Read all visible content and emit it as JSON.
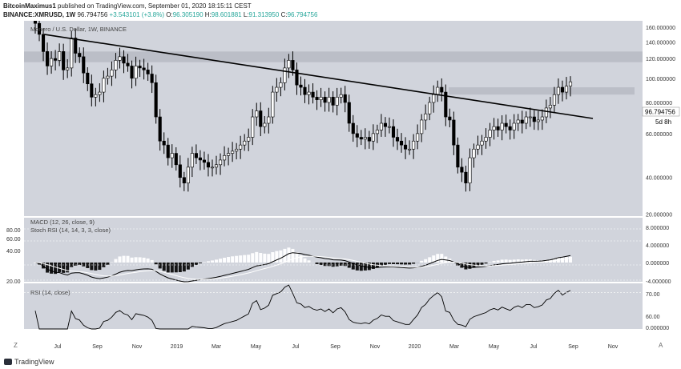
{
  "header": {
    "author": "BitcoinMaximus1",
    "published": "published on TradingView.com, September 01, 2020 18:15:11 CEST",
    "symbol": "BINANCE:XMRUSD, 1W",
    "price": "96.794756",
    "change": "+3.543101 (+3.8%)",
    "o_label": "O:",
    "o": "96.305190",
    "h_label": "H:",
    "h": "98.601881",
    "l_label": "L:",
    "l": "91.313950",
    "c_label": "C:",
    "c": "96.794756"
  },
  "pane_titles": {
    "main": "Monero / U.S. Dollar, 1W, BINANCE",
    "macd": "MACD (12, 26, close, 9)",
    "stoch": "Stoch RSI (14, 14, 3, 3, close)",
    "rsi": "RSI (14, close)"
  },
  "price_label": "96.794756",
  "countdown_label": "5d 8h",
  "footer": {
    "brand": "TradingView"
  },
  "icons": {
    "logo": "tradingview-logo-icon",
    "zoom_left": "Z",
    "zoom_right": "A"
  },
  "chart_data": {
    "type": "candlestick",
    "x_ticks": [
      "Jul",
      "Sep",
      "Nov",
      "2019",
      "Mar",
      "May",
      "Jul",
      "Sep",
      "Nov",
      "2020",
      "Mar",
      "May",
      "Jul",
      "Sep",
      "Nov"
    ],
    "y_ticks_main": [
      "160.000000",
      "140.000000",
      "120.000000",
      "100.000000",
      "80.000000",
      "60.000000",
      "40.000000",
      "20.000000"
    ],
    "y_ticks_macd": [
      "8.000000",
      "4.000000",
      "0.000000",
      "-4.000000"
    ],
    "y_ticks_stoch": [
      "80.00",
      "60.00",
      "40.00",
      "20.00"
    ],
    "y_ticks_rsi": [
      "70.00",
      "60.00",
      "0.000000"
    ],
    "ylim": [
      20,
      170
    ],
    "log_scale": true,
    "colors": {
      "bg": "#d1d4dc",
      "up": "#ffffff",
      "down": "#000000",
      "trend": "#000000",
      "zone": "#b7bac3"
    },
    "weekly_close": [
      166,
      150,
      128,
      112,
      120,
      118,
      128,
      108,
      110,
      145,
      126,
      122,
      105,
      95,
      84,
      86,
      88,
      100,
      102,
      108,
      118,
      122,
      115,
      112,
      100,
      112,
      110,
      108,
      104,
      96,
      70,
      56,
      54,
      48,
      50,
      45,
      40,
      38,
      44,
      50,
      48,
      47,
      46,
      44,
      44,
      45,
      47,
      49,
      50,
      51,
      52,
      54,
      56,
      58,
      70,
      74,
      64,
      66,
      70,
      88,
      92,
      96,
      110,
      118,
      108,
      94,
      92,
      86,
      88,
      84,
      82,
      84,
      80,
      84,
      78,
      84,
      86,
      80,
      66,
      60,
      58,
      57,
      58,
      56,
      60,
      62,
      66,
      64,
      64,
      58,
      56,
      54,
      52,
      52,
      56,
      60,
      68,
      72,
      80,
      86,
      92,
      88,
      70,
      68,
      54,
      44,
      42,
      38,
      48,
      52,
      54,
      56,
      58,
      62,
      64,
      62,
      66,
      64,
      62,
      66,
      68,
      66,
      70,
      70,
      67,
      68,
      70,
      76,
      78,
      86,
      92,
      88,
      93,
      96.79
    ]
  }
}
